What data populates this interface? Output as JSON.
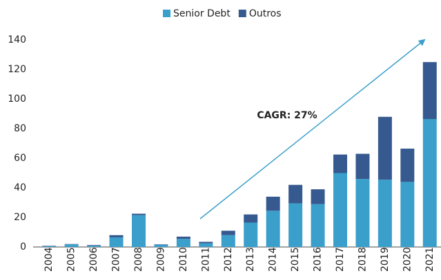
{
  "chart_data": {
    "type": "stacked_bar",
    "categories": [
      "2004",
      "2005",
      "2006",
      "2007",
      "2008",
      "2009",
      "2010",
      "2011",
      "2012",
      "2013",
      "2014",
      "2015",
      "2016",
      "2017",
      "2018",
      "2019",
      "2020",
      "2021"
    ],
    "series": [
      {
        "name": "Senior Debt",
        "color": "#3a9fcb",
        "values": [
          0.5,
          1.8,
          0.8,
          6.5,
          21.5,
          1.5,
          5.5,
          2.5,
          8,
          16.5,
          24.5,
          29.5,
          29,
          50,
          46,
          45.5,
          44,
          86.5
        ]
      },
      {
        "name": "Outros",
        "color": "#365a8f",
        "values": [
          0.3,
          0.2,
          0.5,
          1.5,
          1,
          0.3,
          1.5,
          1,
          3,
          5.5,
          9.5,
          12.5,
          10,
          12.5,
          17,
          42.5,
          22.5,
          38.5
        ]
      }
    ],
    "ylim": [
      0,
      140
    ],
    "yticks": [
      0,
      20,
      40,
      60,
      80,
      100,
      120,
      140
    ],
    "annotation": "CAGR: 27%",
    "legend": "top"
  }
}
